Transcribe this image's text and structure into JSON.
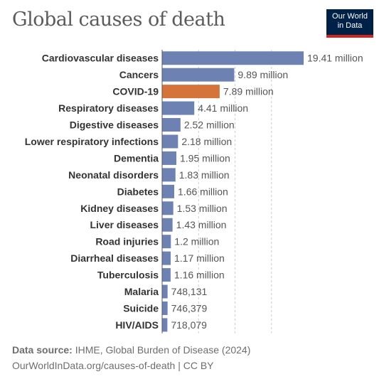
{
  "header": {
    "title": "Global causes of death",
    "logo_line1": "Our World",
    "logo_line2": "in Data"
  },
  "colors": {
    "bar": "#6d82b3",
    "highlight": "#d4733a",
    "grid": "#cccccc",
    "axis": "#555555",
    "label": "#333333",
    "value": "#555555"
  },
  "chart_data": {
    "type": "bar",
    "orientation": "horizontal",
    "categories": [
      "Cardiovascular diseases",
      "Cancers",
      "COVID-19",
      "Respiratory diseases",
      "Digestive diseases",
      "Lower respiratory infections",
      "Dementia",
      "Neonatal disorders",
      "Diabetes",
      "Kidney diseases",
      "Liver diseases",
      "Road injuries",
      "Diarrheal diseases",
      "Tuberculosis",
      "Malaria",
      "Suicide",
      "HIV/AIDS"
    ],
    "values": [
      19410000,
      9890000,
      7890000,
      4410000,
      2520000,
      2180000,
      1950000,
      1830000,
      1660000,
      1530000,
      1430000,
      1200000,
      1170000,
      1160000,
      748131,
      746379,
      718079
    ],
    "value_labels": [
      "19.41 million",
      "9.89 million",
      "7.89 million",
      "4.41 million",
      "2.52 million",
      "2.18 million",
      "1.95 million",
      "1.83 million",
      "1.66 million",
      "1.53 million",
      "1.43 million",
      "1.2 million",
      "1.17 million",
      "1.16 million",
      "748,131",
      "746,379",
      "718,079"
    ],
    "highlight": "COVID-19",
    "gridlines": [
      5000000,
      10000000,
      15000000
    ],
    "xlim": [
      0,
      19410000
    ],
    "title": "Global causes of death",
    "xlabel": "",
    "ylabel": ""
  },
  "footer": {
    "source_label": "Data source:",
    "source_text": "IHME, Global Burden of Disease (2024)",
    "url_text": "OurWorldInData.org/causes-of-death | CC BY"
  }
}
